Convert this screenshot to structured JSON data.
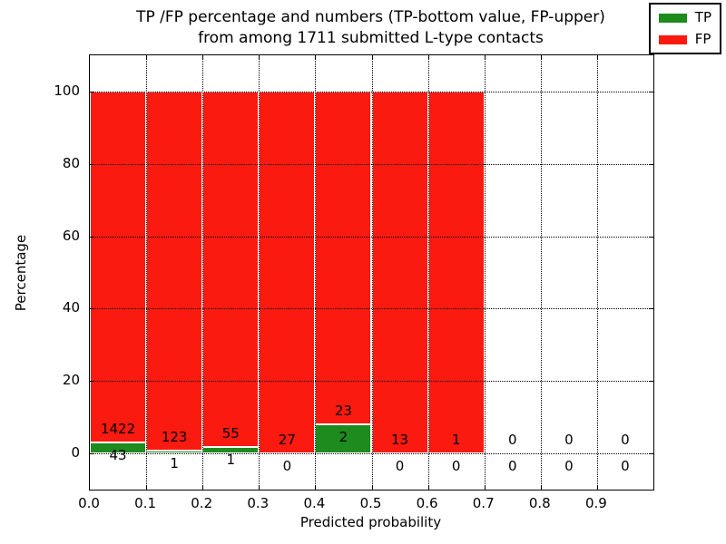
{
  "chart_data": {
    "type": "bar",
    "stacked": true,
    "normalized": "percent",
    "title_lines": [
      "TP /FP percentage and numbers (TP-bottom value, FP-upper)",
      "from among 1711 submitted L-type contacts"
    ],
    "total_contacts": 1711,
    "xlabel": "Predicted probability",
    "ylabel": "Percentage",
    "xlim": [
      0.0,
      1.0
    ],
    "ylim": [
      -10,
      110
    ],
    "xticks": [
      "0.0",
      "0.1",
      "0.2",
      "0.3",
      "0.4",
      "0.5",
      "0.6",
      "0.7",
      "0.8",
      "0.9"
    ],
    "yticks": [
      0,
      20,
      40,
      60,
      80,
      100
    ],
    "grid": "dotted, both axes, drawn above bars",
    "bins": [
      {
        "x0": 0.0,
        "x1": 0.1,
        "tp": 43,
        "fp": 1422
      },
      {
        "x0": 0.1,
        "x1": 0.2,
        "tp": 1,
        "fp": 123
      },
      {
        "x0": 0.2,
        "x1": 0.3,
        "tp": 1,
        "fp": 55
      },
      {
        "x0": 0.3,
        "x1": 0.4,
        "tp": 0,
        "fp": 27
      },
      {
        "x0": 0.4,
        "x1": 0.5,
        "tp": 2,
        "fp": 23
      },
      {
        "x0": 0.5,
        "x1": 0.6,
        "tp": 0,
        "fp": 13
      },
      {
        "x0": 0.6,
        "x1": 0.7,
        "tp": 0,
        "fp": 1
      },
      {
        "x0": 0.7,
        "x1": 0.8,
        "tp": 0,
        "fp": 0
      },
      {
        "x0": 0.8,
        "x1": 0.9,
        "tp": 0,
        "fp": 0
      },
      {
        "x0": 0.9,
        "x1": 1.0,
        "tp": 0,
        "fp": 0
      }
    ],
    "legend": [
      {
        "label": "TP",
        "color": "#1e8b1e"
      },
      {
        "label": "FP",
        "color": "#fa1a10"
      }
    ],
    "colors": {
      "tp": "#1e8b1e",
      "fp": "#fa1a10",
      "grid": "#000000",
      "bar_edge": "#ffffff"
    },
    "legend_position": "upper right"
  }
}
